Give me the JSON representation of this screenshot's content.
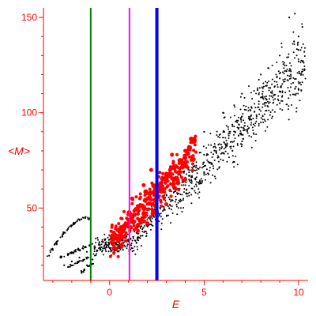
{
  "chart_data": {
    "type": "scatter",
    "title": "",
    "xlabel": "E",
    "ylabel": "<M>",
    "xlim": [
      -3.5,
      10.5
    ],
    "ylim": [
      12,
      155
    ],
    "x_ticks": [
      0,
      5,
      10
    ],
    "y_ticks": [
      50,
      100,
      150
    ],
    "grid": false,
    "legend": "none",
    "colors": {
      "axis": "#ff0000",
      "black_points": "#000000",
      "red_points": "#ff0000",
      "line_green": "#008000",
      "line_magenta": "#ff00ff",
      "line_blue": "#0000ff"
    },
    "vertical_lines": [
      {
        "x": -1.0,
        "color": "#008000",
        "width": "thin"
      },
      {
        "x": 1.05,
        "color": "#ff00ff",
        "width": "thin"
      },
      {
        "x": 2.5,
        "color": "#0000ff",
        "width": "thick"
      }
    ],
    "series": [
      {
        "color": "black",
        "point_style": "small dots",
        "description_shape": "curved band rising from about (-3,25) through (0,30), (5,80) to (10,125); small hump near (-1,45) with branches below",
        "sample_points": [
          [
            -3.2,
            25
          ],
          [
            -3.0,
            28
          ],
          [
            -2.8,
            31
          ],
          [
            -2.5,
            35
          ],
          [
            -2.2,
            39
          ],
          [
            -1.9,
            42
          ],
          [
            -1.6,
            44
          ],
          [
            -1.3,
            45
          ],
          [
            -1.1,
            44
          ],
          [
            -2.6,
            24
          ],
          [
            -2.2,
            26
          ],
          [
            -1.8,
            28
          ],
          [
            -1.4,
            30
          ],
          [
            -1.0,
            31
          ],
          [
            -2.4,
            20
          ],
          [
            -2.0,
            22
          ],
          [
            -1.6,
            24
          ],
          [
            -1.2,
            27
          ],
          [
            -1.5,
            17
          ],
          [
            -1.2,
            20
          ],
          [
            -0.9,
            23
          ],
          [
            -0.8,
            30
          ],
          [
            -0.5,
            28
          ],
          [
            -0.2,
            31
          ],
          [
            0.0,
            29
          ],
          [
            0.3,
            32
          ],
          [
            0.5,
            30
          ],
          [
            0.7,
            33
          ],
          [
            0.9,
            35
          ],
          [
            1.5,
            40
          ],
          [
            2.0,
            46
          ],
          [
            2.5,
            52
          ],
          [
            3.0,
            57
          ],
          [
            3.5,
            61
          ],
          [
            4.0,
            66
          ],
          [
            4.5,
            72
          ],
          [
            5.0,
            78
          ],
          [
            5.5,
            82
          ],
          [
            6.0,
            87
          ],
          [
            6.5,
            93
          ],
          [
            7.0,
            98
          ],
          [
            7.5,
            103
          ],
          [
            8.0,
            108
          ],
          [
            8.5,
            113
          ],
          [
            9.0,
            118
          ],
          [
            9.5,
            122
          ],
          [
            10.0,
            127
          ],
          [
            10.3,
            132
          ],
          [
            9.5,
            150
          ],
          [
            9.8,
            152
          ],
          [
            10.2,
            145
          ],
          [
            6.0,
            75
          ],
          [
            6.5,
            80
          ],
          [
            7.0,
            85
          ],
          [
            8.0,
            95
          ],
          [
            9.0,
            105
          ],
          [
            10.0,
            112
          ],
          [
            5.0,
            90
          ],
          [
            6.0,
            100
          ],
          [
            7.0,
            110
          ],
          [
            8.0,
            120
          ],
          [
            9.0,
            130
          ],
          [
            10.0,
            140
          ]
        ]
      },
      {
        "color": "red",
        "point_style": "larger dots",
        "description_shape": "cluster from about x=0 to x=4.5, y between 28 and 88, centred near (2.5,55)",
        "sample_points": [
          [
            0.1,
            32
          ],
          [
            0.3,
            35
          ],
          [
            0.5,
            38
          ],
          [
            0.8,
            40
          ],
          [
            1.0,
            42
          ],
          [
            1.2,
            45
          ],
          [
            1.5,
            47
          ],
          [
            1.8,
            50
          ],
          [
            2.0,
            55
          ],
          [
            2.2,
            58
          ],
          [
            2.4,
            60
          ],
          [
            2.6,
            62
          ],
          [
            2.8,
            65
          ],
          [
            3.0,
            68
          ],
          [
            3.2,
            70
          ],
          [
            3.5,
            72
          ],
          [
            3.8,
            75
          ],
          [
            4.0,
            80
          ],
          [
            4.2,
            82
          ],
          [
            4.5,
            85
          ],
          [
            2.5,
            48
          ],
          [
            2.0,
            42
          ],
          [
            1.5,
            38
          ],
          [
            3.0,
            52
          ],
          [
            3.5,
            60
          ],
          [
            4.0,
            65
          ],
          [
            2.2,
            70
          ],
          [
            1.8,
            62
          ],
          [
            3.3,
            78
          ],
          [
            1.2,
            55
          ]
        ]
      }
    ]
  }
}
